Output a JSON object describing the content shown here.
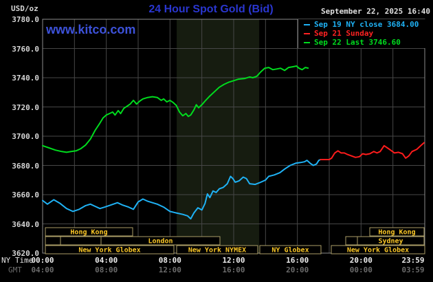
{
  "header": {
    "unit_label": "USD/oz",
    "title": "24 Hour Spot Gold (Bid)",
    "datetime": "September 22, 2025 16:40",
    "watermark": "www.kitco.com"
  },
  "legend": {
    "items": [
      {
        "label": "Sep 19 NY close 3684.00",
        "color": "#1fb2f5"
      },
      {
        "label": "Sep 21 Sunday",
        "color": "#ff2222"
      },
      {
        "label": "Sep 22 Last 3746.60",
        "color": "#00dc1e"
      }
    ]
  },
  "axes": {
    "ny_time_label": "NY Time",
    "gmt_label": "GMT",
    "ny_ticks": [
      "00:00",
      "04:00",
      "08:00",
      "12:00",
      "16:00",
      "20:00",
      "23:59"
    ],
    "gmt_ticks": [
      "04:00",
      "08:00",
      "12:00",
      "16:00",
      "20:00",
      "00:00",
      "03:59"
    ],
    "y_ticks": [
      "3780.0",
      "3760.0",
      "3740.0",
      "3720.0",
      "3700.0",
      "3680.0",
      "3660.0",
      "3640.0",
      "3620.0"
    ]
  },
  "colors": {
    "background": "#000000",
    "grid": "#474747",
    "plot_border": "#8c8c8c",
    "shaded_band": "#161c10",
    "session_border": "#ab9e67",
    "session_text": "#fcc827",
    "title_blue": "#2a36cf",
    "watermark_blue": "#3d52da"
  },
  "chart_data": {
    "type": "line",
    "title": "24 Hour Spot Gold (Bid)",
    "x_axis": {
      "label": "NY Time",
      "min_hours": 0,
      "max_hours": 24,
      "grid_step_hours": 2,
      "label_step_hours": 4
    },
    "y_axis": {
      "label": "USD/oz",
      "min": 3620,
      "max": 3780,
      "grid_step": 20
    },
    "shaded_region": {
      "start_hours": 8.42,
      "end_hours": 13.6,
      "meaning": "New York NYMEX session"
    },
    "series": [
      {
        "name": "Sep 22 Last 3746.60",
        "color": "#00dc1e",
        "points": [
          [
            0,
            3693.5
          ],
          [
            0.4,
            3692
          ],
          [
            0.8,
            3690.5
          ],
          [
            1.2,
            3689.5
          ],
          [
            1.5,
            3689
          ],
          [
            1.8,
            3689.5
          ],
          [
            2.1,
            3690
          ],
          [
            2.4,
            3691.5
          ],
          [
            2.7,
            3694
          ],
          [
            3.0,
            3698
          ],
          [
            3.3,
            3704
          ],
          [
            3.6,
            3709
          ],
          [
            3.8,
            3712.5
          ],
          [
            4.0,
            3714.5
          ],
          [
            4.2,
            3715.5
          ],
          [
            4.4,
            3716.5
          ],
          [
            4.55,
            3714.5
          ],
          [
            4.75,
            3717.5
          ],
          [
            4.9,
            3715.5
          ],
          [
            5.1,
            3719
          ],
          [
            5.3,
            3720.5
          ],
          [
            5.5,
            3722
          ],
          [
            5.7,
            3724.5
          ],
          [
            5.9,
            3722
          ],
          [
            6.1,
            3724
          ],
          [
            6.3,
            3725.5
          ],
          [
            6.6,
            3726.5
          ],
          [
            6.9,
            3727
          ],
          [
            7.2,
            3726.5
          ],
          [
            7.45,
            3724.5
          ],
          [
            7.6,
            3725.5
          ],
          [
            7.8,
            3723.5
          ],
          [
            8.0,
            3724.5
          ],
          [
            8.2,
            3723
          ],
          [
            8.4,
            3721
          ],
          [
            8.6,
            3716.5
          ],
          [
            8.8,
            3714
          ],
          [
            9.0,
            3715.5
          ],
          [
            9.15,
            3713.5
          ],
          [
            9.3,
            3714.5
          ],
          [
            9.5,
            3718
          ],
          [
            9.65,
            3721.5
          ],
          [
            9.8,
            3719.5
          ],
          [
            10.0,
            3721.5
          ],
          [
            10.2,
            3724
          ],
          [
            10.5,
            3727.5
          ],
          [
            10.8,
            3730.5
          ],
          [
            11.1,
            3733.5
          ],
          [
            11.4,
            3735.5
          ],
          [
            11.7,
            3737
          ],
          [
            12.0,
            3738
          ],
          [
            12.3,
            3739
          ],
          [
            12.7,
            3739.5
          ],
          [
            13.0,
            3740.5
          ],
          [
            13.2,
            3740
          ],
          [
            13.45,
            3741
          ],
          [
            13.7,
            3744
          ],
          [
            13.95,
            3746.5
          ],
          [
            14.2,
            3747
          ],
          [
            14.45,
            3745.5
          ],
          [
            14.7,
            3746
          ],
          [
            14.95,
            3746.5
          ],
          [
            15.2,
            3745
          ],
          [
            15.45,
            3747
          ],
          [
            15.7,
            3747.5
          ],
          [
            15.95,
            3748
          ],
          [
            16.1,
            3746.5
          ],
          [
            16.3,
            3745.5
          ],
          [
            16.5,
            3747
          ],
          [
            16.67,
            3746.6
          ]
        ]
      },
      {
        "name": "Sep 19 NY close 3684.00",
        "color": "#1fb2f5",
        "points": [
          [
            0,
            3656
          ],
          [
            0.3,
            3653.5
          ],
          [
            0.7,
            3656.5
          ],
          [
            1.1,
            3654
          ],
          [
            1.5,
            3650.5
          ],
          [
            1.9,
            3648.5
          ],
          [
            2.3,
            3650
          ],
          [
            2.7,
            3652.5
          ],
          [
            3.0,
            3653.5
          ],
          [
            3.3,
            3652
          ],
          [
            3.6,
            3650.5
          ],
          [
            3.9,
            3651.5
          ],
          [
            4.3,
            3653
          ],
          [
            4.7,
            3654.5
          ],
          [
            5.0,
            3653
          ],
          [
            5.4,
            3651.5
          ],
          [
            5.7,
            3650
          ],
          [
            6.0,
            3655
          ],
          [
            6.3,
            3657
          ],
          [
            6.6,
            3655.5
          ],
          [
            6.9,
            3654.5
          ],
          [
            7.2,
            3653.5
          ],
          [
            7.6,
            3651.5
          ],
          [
            8.0,
            3648.5
          ],
          [
            8.4,
            3647.5
          ],
          [
            8.8,
            3646.5
          ],
          [
            9.1,
            3645.5
          ],
          [
            9.3,
            3643.5
          ],
          [
            9.5,
            3647.5
          ],
          [
            9.75,
            3651
          ],
          [
            10.0,
            3649.5
          ],
          [
            10.2,
            3654
          ],
          [
            10.35,
            3660.5
          ],
          [
            10.5,
            3658
          ],
          [
            10.7,
            3662.5
          ],
          [
            10.9,
            3661.5
          ],
          [
            11.1,
            3664
          ],
          [
            11.35,
            3665
          ],
          [
            11.6,
            3667.5
          ],
          [
            11.8,
            3672.5
          ],
          [
            11.95,
            3671
          ],
          [
            12.1,
            3668.5
          ],
          [
            12.35,
            3669.5
          ],
          [
            12.6,
            3672
          ],
          [
            12.8,
            3671
          ],
          [
            13.0,
            3667.5
          ],
          [
            13.35,
            3667
          ],
          [
            13.7,
            3668.5
          ],
          [
            14.0,
            3670
          ],
          [
            14.2,
            3672.5
          ],
          [
            14.55,
            3673.5
          ],
          [
            14.9,
            3675
          ],
          [
            15.2,
            3677.5
          ],
          [
            15.55,
            3680
          ],
          [
            15.9,
            3681.5
          ],
          [
            16.2,
            3682
          ],
          [
            16.45,
            3682.5
          ],
          [
            16.6,
            3683.5
          ],
          [
            16.8,
            3681.5
          ],
          [
            17.0,
            3680
          ],
          [
            17.2,
            3681
          ],
          [
            17.35,
            3683.5
          ],
          [
            17.45,
            3684
          ]
        ]
      },
      {
        "name": "Sep 21 Sunday",
        "color": "#ff1c1c",
        "points": [
          [
            17.45,
            3684
          ],
          [
            18.0,
            3684
          ],
          [
            18.15,
            3685
          ],
          [
            18.35,
            3688.5
          ],
          [
            18.55,
            3690
          ],
          [
            18.75,
            3688.5
          ],
          [
            18.95,
            3688.5
          ],
          [
            19.15,
            3687.5
          ],
          [
            19.4,
            3686.5
          ],
          [
            19.65,
            3685.5
          ],
          [
            19.9,
            3686
          ],
          [
            20.1,
            3688
          ],
          [
            20.3,
            3687.5
          ],
          [
            20.55,
            3688
          ],
          [
            20.8,
            3689.5
          ],
          [
            21.0,
            3688.5
          ],
          [
            21.2,
            3689.5
          ],
          [
            21.45,
            3693.5
          ],
          [
            21.65,
            3692
          ],
          [
            21.85,
            3690.5
          ],
          [
            22.1,
            3688.5
          ],
          [
            22.35,
            3689
          ],
          [
            22.6,
            3688
          ],
          [
            22.8,
            3685
          ],
          [
            23.0,
            3686.5
          ],
          [
            23.2,
            3689.5
          ],
          [
            23.5,
            3691
          ],
          [
            23.75,
            3693.5
          ],
          [
            23.95,
            3695.5
          ]
        ]
      }
    ],
    "sessions": [
      {
        "row": 0,
        "x1": 66,
        "x2": 193,
        "label": "Hong Kong"
      },
      {
        "row": 0,
        "x1": 538,
        "x2": 617,
        "label": "Hong Kong"
      },
      {
        "row": 1,
        "x1": 66,
        "x2": 88,
        "label": ""
      },
      {
        "row": 1,
        "x1": 88,
        "x2": 147,
        "label": ""
      },
      {
        "row": 1,
        "x1": 147,
        "x2": 320,
        "label": "London"
      },
      {
        "row": 1,
        "x1": 503,
        "x2": 520,
        "label": ""
      },
      {
        "row": 1,
        "x1": 520,
        "x2": 617,
        "label": "Sydney"
      },
      {
        "row": 2,
        "x1": 66,
        "x2": 253,
        "label": "New York Globex"
      },
      {
        "row": 2,
        "x1": 257,
        "x2": 375,
        "label": "New York NYMEX"
      },
      {
        "row": 2,
        "x1": 378,
        "x2": 467,
        "label": "NY Globex"
      },
      {
        "row": 2,
        "x1": 482,
        "x2": 618,
        "label": "New York Globex"
      }
    ]
  }
}
